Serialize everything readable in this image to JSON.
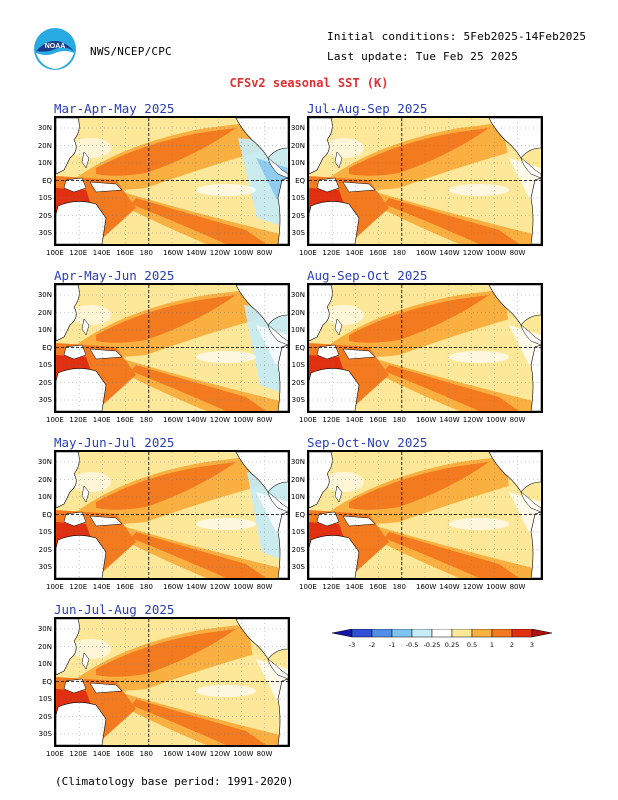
{
  "header": {
    "logo_text": "NOAA",
    "agency": "NWS/NCEP/CPC",
    "initial_conditions": "Initial conditions: 5Feb2025-14Feb2025",
    "last_update": "Last update: Tue Feb 25 2025"
  },
  "title": "CFSv2 seasonal SST (K)",
  "panels": [
    {
      "id": "mam",
      "label": "Mar-Apr-May 2025",
      "warm": 0.55,
      "cold_east": 0.9
    },
    {
      "id": "amj",
      "label": "Apr-May-Jun 2025",
      "warm": 0.6,
      "cold_east": 0.6
    },
    {
      "id": "mjj",
      "label": "May-Jun-Jul 2025",
      "warm": 0.65,
      "cold_east": 0.45
    },
    {
      "id": "jja",
      "label": "Jun-Jul-Aug 2025",
      "warm": 0.6,
      "cold_east": 0.3
    },
    {
      "id": "jas",
      "label": "Jul-Aug-Sep 2025",
      "warm": 0.55,
      "cold_east": 0.2
    },
    {
      "id": "aso",
      "label": "Aug-Sep-Oct 2025",
      "warm": 0.5,
      "cold_east": 0.15
    },
    {
      "id": "son",
      "label": "Sep-Oct-Nov 2025",
      "warm": 0.45,
      "cold_east": 0.1
    }
  ],
  "axes": {
    "lon_ticks": [
      "100E",
      "120E",
      "140E",
      "160E",
      "180",
      "160W",
      "140W",
      "120W",
      "100W",
      "80W"
    ],
    "lat_ticks": [
      "30N",
      "20N",
      "10N",
      "EQ",
      "10S",
      "20S",
      "30S"
    ]
  },
  "colorbar": {
    "labels": [
      "-3",
      "-2",
      "-1",
      "-0.5",
      "-0.25",
      "0.25",
      "0.5",
      "1",
      "2",
      "3"
    ],
    "colors": [
      "#1515a8",
      "#2f4fd8",
      "#4f8fe8",
      "#7fc4f0",
      "#c5ecf8",
      "#ffffff",
      "#fde89a",
      "#fab040",
      "#f47a20",
      "#e03010",
      "#b01010"
    ]
  },
  "footer": "(Climatology base period: 1991-2020)"
}
